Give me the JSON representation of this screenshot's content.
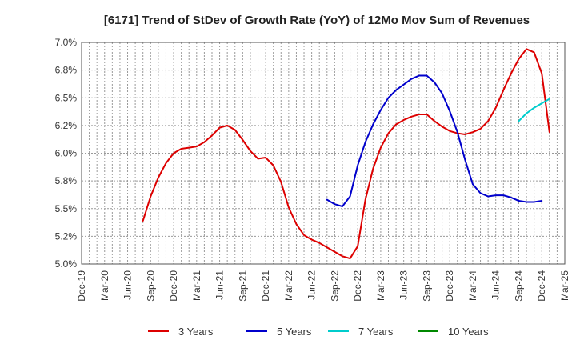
{
  "chart_data": {
    "type": "line",
    "title": "[6171]  Trend of StDev of Growth Rate (YoY) of 12Mo Mov Sum of Revenues",
    "xlabel": "",
    "ylabel": "",
    "ylim": [
      5.0,
      7.0
    ],
    "yticks": [
      5.0,
      5.25,
      5.5,
      5.75,
      6.0,
      6.25,
      6.5,
      6.75,
      7.0
    ],
    "ytick_labels": [
      "5.0%",
      "5.2%",
      "5.5%",
      "5.8%",
      "6.0%",
      "6.2%",
      "6.5%",
      "6.8%",
      "7.0%"
    ],
    "xticks": [
      "Dec-19",
      "Mar-20",
      "Jun-20",
      "Sep-20",
      "Dec-20",
      "Mar-21",
      "Jun-21",
      "Sep-21",
      "Dec-21",
      "Mar-22",
      "Jun-22",
      "Sep-22",
      "Dec-22",
      "Mar-23",
      "Jun-23",
      "Sep-23",
      "Dec-23",
      "Mar-24",
      "Jun-24",
      "Sep-24",
      "Dec-24",
      "Mar-25"
    ],
    "grid": true,
    "legend_position": "bottom",
    "series": [
      {
        "name": "3 Years",
        "color": "#dd0000",
        "start_index": 8,
        "values": [
          5.39,
          5.61,
          5.78,
          5.91,
          6.0,
          6.04,
          6.05,
          6.06,
          6.1,
          6.16,
          6.23,
          6.25,
          6.21,
          6.12,
          6.02,
          5.95,
          5.96,
          5.89,
          5.74,
          5.51,
          5.36,
          5.26,
          5.22,
          5.19,
          5.15,
          5.11,
          5.07,
          5.05,
          5.16,
          5.58,
          5.86,
          6.05,
          6.18,
          6.26,
          6.3,
          6.33,
          6.35,
          6.35,
          6.29,
          6.24,
          6.2,
          6.18,
          6.17,
          6.19,
          6.22,
          6.29,
          6.41,
          6.57,
          6.72,
          6.85,
          6.94,
          6.91,
          6.72,
          6.19
        ]
      },
      {
        "name": "5 Years",
        "color": "#0000cc",
        "start_index": 32,
        "values": [
          5.58,
          5.54,
          5.52,
          5.61,
          5.89,
          6.1,
          6.26,
          6.39,
          6.5,
          6.57,
          6.62,
          6.67,
          6.7,
          6.7,
          6.64,
          6.54,
          6.38,
          6.19,
          5.94,
          5.72,
          5.64,
          5.61,
          5.62,
          5.62,
          5.6,
          5.57,
          5.56,
          5.56,
          5.57
        ]
      },
      {
        "name": "7 Years",
        "color": "#00cccc",
        "start_index": 57,
        "values": [
          6.29,
          6.36,
          6.41,
          6.45,
          6.49
        ]
      },
      {
        "name": "10 Years",
        "color": "#008800",
        "start_index": 0,
        "values": []
      }
    ]
  }
}
